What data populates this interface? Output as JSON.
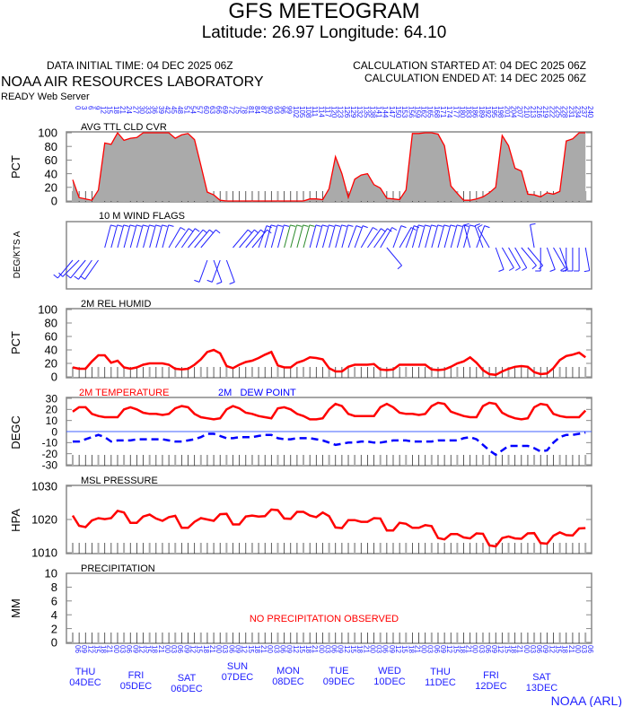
{
  "header": {
    "title": "GFS METEOGRAM",
    "subtitle": "Latitude: 26.97 Longitude:  64.10",
    "data_initial_time": "DATA INITIAL TIME: 04 DEC 2025 06Z",
    "calc_started": "CALCULATION STARTED AT: 04 DEC 2025 06Z",
    "calc_ended": "CALCULATION ENDED AT: 14 DEC 2025 06Z",
    "org": "NOAA AIR RESOURCES LABORATORY",
    "server": "READY Web Server"
  },
  "footer": {
    "credit": "NOAA (ARL)"
  },
  "colors": {
    "primary_line": "#ff0000",
    "dew_line": "#0000ff",
    "cloud_fill": "#aaaaaa",
    "axis_labels": "#2020ff"
  },
  "forecast_hours": [
    0,
    3,
    6,
    9,
    12,
    15,
    18,
    21,
    24,
    27,
    30,
    33,
    36,
    39,
    42,
    45,
    48,
    51,
    54,
    57,
    60,
    63,
    66,
    69,
    72,
    75,
    78,
    81,
    84,
    87,
    90,
    93,
    96,
    99,
    102,
    105,
    108,
    111,
    114,
    117,
    120,
    123,
    126,
    129,
    132,
    135,
    138,
    141,
    144,
    147,
    150,
    153,
    156,
    159,
    162,
    165,
    168,
    171,
    174,
    177,
    180,
    183,
    186,
    189,
    192,
    195,
    198,
    201,
    204,
    207,
    210,
    213,
    216,
    219,
    222,
    225,
    228,
    231,
    234,
    237,
    240
  ],
  "days": [
    {
      "dow": "THU",
      "date": "04DEC"
    },
    {
      "dow": "FRI",
      "date": "05DEC"
    },
    {
      "dow": "SAT",
      "date": "06DEC"
    },
    {
      "dow": "SUN",
      "date": "07DEC"
    },
    {
      "dow": "MON",
      "date": "08DEC"
    },
    {
      "dow": "TUE",
      "date": "09DEC"
    },
    {
      "dow": "WED",
      "date": "10DEC"
    },
    {
      "dow": "THU",
      "date": "11DEC"
    },
    {
      "dow": "FRI",
      "date": "12DEC"
    },
    {
      "dow": "SAT",
      "date": "13DEC"
    }
  ],
  "chart_data": [
    {
      "type": "area",
      "title": "AVG TTL CLD CVR",
      "ylabel": "PCT",
      "ylim": [
        0,
        100
      ],
      "yticks": [
        0,
        20,
        40,
        60,
        80,
        100
      ],
      "x": "forecast_hours",
      "values": [
        31,
        5,
        3,
        1,
        16,
        85,
        83,
        100,
        89,
        92,
        93,
        100,
        100,
        100,
        100,
        100,
        92,
        97,
        99,
        90,
        52,
        13,
        9,
        1,
        0,
        0,
        0,
        0,
        0,
        0,
        0,
        0,
        0,
        0,
        0,
        0,
        0,
        3,
        3,
        2,
        18,
        65,
        40,
        5,
        32,
        38,
        40,
        24,
        19,
        4,
        3,
        2,
        16,
        99,
        99,
        100,
        100,
        98,
        81,
        22,
        11,
        1,
        1,
        3,
        6,
        12,
        20,
        96,
        81,
        48,
        44,
        10,
        9,
        6,
        12,
        10,
        14,
        88,
        91,
        100,
        100
      ]
    },
    {
      "type": "wind_barbs",
      "title": "10 M  WIND FLAGS",
      "ylabel": "DEG/KTS A",
      "direction_deg": [
        220,
        225,
        220,
        215,
        215,
        15,
        15,
        15,
        15,
        15,
        15,
        15,
        15,
        15,
        15,
        30,
        35,
        35,
        40,
        40,
        40,
        200,
        160,
        200,
        160,
        40,
        40,
        40,
        40,
        20,
        15,
        15,
        15,
        15,
        15,
        15,
        15,
        15,
        15,
        15,
        15,
        15,
        15,
        20,
        20,
        30,
        35,
        35,
        30,
        140,
        20,
        30,
        20,
        15,
        15,
        15,
        15,
        15,
        15,
        15,
        15,
        15,
        345,
        20,
        340,
        330,
        160,
        150,
        150,
        150,
        140,
        140,
        350,
        180,
        160,
        150,
        160,
        180,
        180,
        180,
        170
      ]
    },
    {
      "type": "line",
      "title": "2M REL HUMID",
      "ylabel": "PCT",
      "ylim": [
        0,
        100
      ],
      "yticks": [
        0,
        20,
        40,
        60,
        80,
        100
      ],
      "values": [
        14,
        12,
        12,
        23,
        32,
        32,
        21,
        24,
        14,
        12,
        14,
        18,
        20,
        20,
        20,
        18,
        12,
        11,
        12,
        18,
        26,
        37,
        40,
        35,
        16,
        13,
        18,
        22,
        24,
        28,
        33,
        37,
        17,
        14,
        14,
        21,
        24,
        29,
        28,
        26,
        13,
        8,
        8,
        15,
        18,
        18,
        18,
        19,
        11,
        10,
        11,
        18,
        18,
        18,
        18,
        18,
        11,
        10,
        11,
        15,
        20,
        23,
        29,
        21,
        10,
        4,
        3,
        8,
        12,
        15,
        16,
        15,
        7,
        4,
        5,
        13,
        25,
        31,
        33,
        36,
        29
      ]
    },
    {
      "type": "line",
      "ylabel": "DEGC",
      "ylim": [
        -30,
        30
      ],
      "yticks": [
        -30,
        -20,
        -10,
        0,
        10,
        20,
        30
      ],
      "series": [
        {
          "name": "2M TEMPERATURE",
          "values": [
            18,
            22,
            22,
            16,
            14,
            13,
            13,
            13,
            20,
            22,
            20,
            17,
            16,
            16,
            15,
            16,
            21,
            23,
            22,
            16,
            13,
            12,
            11,
            12,
            20,
            23,
            21,
            17,
            16,
            14,
            13,
            12,
            21,
            22,
            20,
            16,
            14,
            11,
            11,
            12,
            20,
            25,
            23,
            16,
            14,
            14,
            14,
            14,
            22,
            25,
            22,
            17,
            16,
            16,
            15,
            16,
            23,
            26,
            25,
            18,
            16,
            14,
            13,
            13,
            23,
            26,
            25,
            17,
            14,
            12,
            11,
            12,
            22,
            25,
            24,
            16,
            14,
            13,
            13,
            13,
            19
          ]
        },
        {
          "name": "2M   DEW POINT",
          "values": [
            -9,
            -9,
            -7,
            -5,
            -3,
            -5,
            -9,
            -8,
            -8,
            -8,
            -7,
            -7,
            -7,
            -7,
            -7,
            -8,
            -9,
            -9,
            -8,
            -7,
            -5,
            -2,
            -2,
            -4,
            -6,
            -6,
            -5,
            -5,
            -5,
            -4,
            -3,
            -3,
            -6,
            -7,
            -7,
            -6,
            -6,
            -6,
            -7,
            -8,
            -10,
            -12,
            -11,
            -10,
            -10,
            -9,
            -9,
            -10,
            -10,
            -9,
            -8,
            -8,
            -8,
            -9,
            -9,
            -9,
            -9,
            -8,
            -8,
            -8,
            -8,
            -6,
            -5,
            -7,
            -12,
            -17,
            -21,
            -17,
            -13,
            -13,
            -13,
            -13,
            -15,
            -18,
            -17,
            -10,
            -5,
            -3,
            -3,
            -2,
            -1
          ]
        }
      ]
    },
    {
      "type": "line",
      "title": "MSL PRESSURE",
      "ylabel": "HPA",
      "ylim": [
        1010,
        1030
      ],
      "yticks": [
        1010,
        1020,
        1030
      ],
      "values": [
        1021.2,
        1018.1,
        1017.7,
        1019.7,
        1020.4,
        1020.1,
        1020.4,
        1022.6,
        1022.1,
        1019.0,
        1019.0,
        1020.9,
        1021.5,
        1020.3,
        1019.6,
        1020.7,
        1021.1,
        1017.5,
        1017.5,
        1019.3,
        1020.4,
        1020.0,
        1019.6,
        1021.6,
        1021.7,
        1018.5,
        1018.5,
        1020.9,
        1021.2,
        1020.9,
        1021.0,
        1023.0,
        1022.8,
        1020.3,
        1020.2,
        1022.3,
        1022.3,
        1021.2,
        1020.7,
        1022.1,
        1021.0,
        1017.6,
        1017.4,
        1019.8,
        1019.8,
        1019.3,
        1019.3,
        1020.4,
        1020.3,
        1016.7,
        1016.7,
        1019.0,
        1018.7,
        1017.5,
        1017.5,
        1018.3,
        1018.0,
        1014.4,
        1014.0,
        1015.6,
        1015.6,
        1014.6,
        1014.3,
        1015.8,
        1015.7,
        1012.2,
        1011.9,
        1014.4,
        1014.9,
        1014.3,
        1014.2,
        1015.8,
        1015.9,
        1012.9,
        1012.7,
        1015.1,
        1016.1,
        1015.3,
        1015.2,
        1017.3,
        1017.4
      ]
    },
    {
      "type": "bar",
      "title": "PRECIPITATION",
      "ylabel": "MM",
      "ylim": [
        0,
        10
      ],
      "yticks": [
        0,
        2,
        4,
        6,
        8,
        10
      ],
      "annotation": "NO PRECIPITATION OBSERVED",
      "values": []
    }
  ]
}
